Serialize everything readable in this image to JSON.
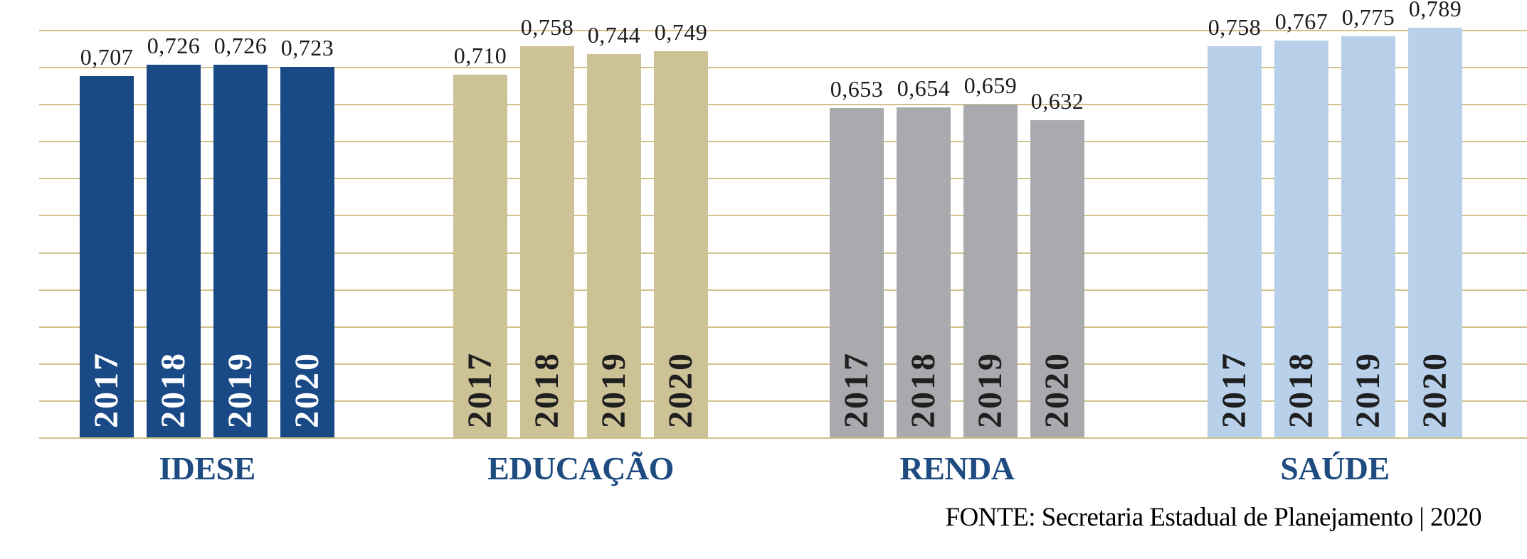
{
  "chart_data": {
    "type": "bar",
    "title": "",
    "years": [
      "2017",
      "2018",
      "2019",
      "2020"
    ],
    "groups": [
      {
        "label": "IDESE",
        "bar_color": "#194a86",
        "year_text_color": "#ffffff",
        "values": [
          0.707,
          0.726,
          0.726,
          0.723
        ],
        "display_values": [
          "0,707",
          "0,726",
          "0,726",
          "0,723"
        ]
      },
      {
        "label": "EDUCAÇÃO",
        "bar_color": "#cdc196",
        "year_text_color": "#1f1f1f",
        "values": [
          0.71,
          0.758,
          0.744,
          0.749
        ],
        "display_values": [
          "0,710",
          "0,758",
          "0,744",
          "0,749"
        ]
      },
      {
        "label": "RENDA",
        "bar_color": "#a8aaad",
        "year_text_color": "#1f1f1f",
        "values": [
          0.653,
          0.654,
          0.659,
          0.632
        ],
        "display_values": [
          "0,653",
          "0,654",
          "0,659",
          "0,632"
        ]
      },
      {
        "label": "SAÚDE",
        "bar_color": "#b9d0eb",
        "year_text_color": "#1f1f1f",
        "values": [
          0.758,
          0.767,
          0.775,
          0.789
        ],
        "display_values": [
          "0,758",
          "0,767",
          "0,775",
          "0,789"
        ]
      }
    ],
    "grid": true,
    "gridline_count": 12,
    "gridline_color": "#d0c28a",
    "value_label_color": "#1c1c1c",
    "group_label_color": "#1e4c80",
    "legend_position": "none"
  },
  "footer": {
    "source_text": "FONTE: Secretaria Estadual de Planejamento | 2020"
  }
}
